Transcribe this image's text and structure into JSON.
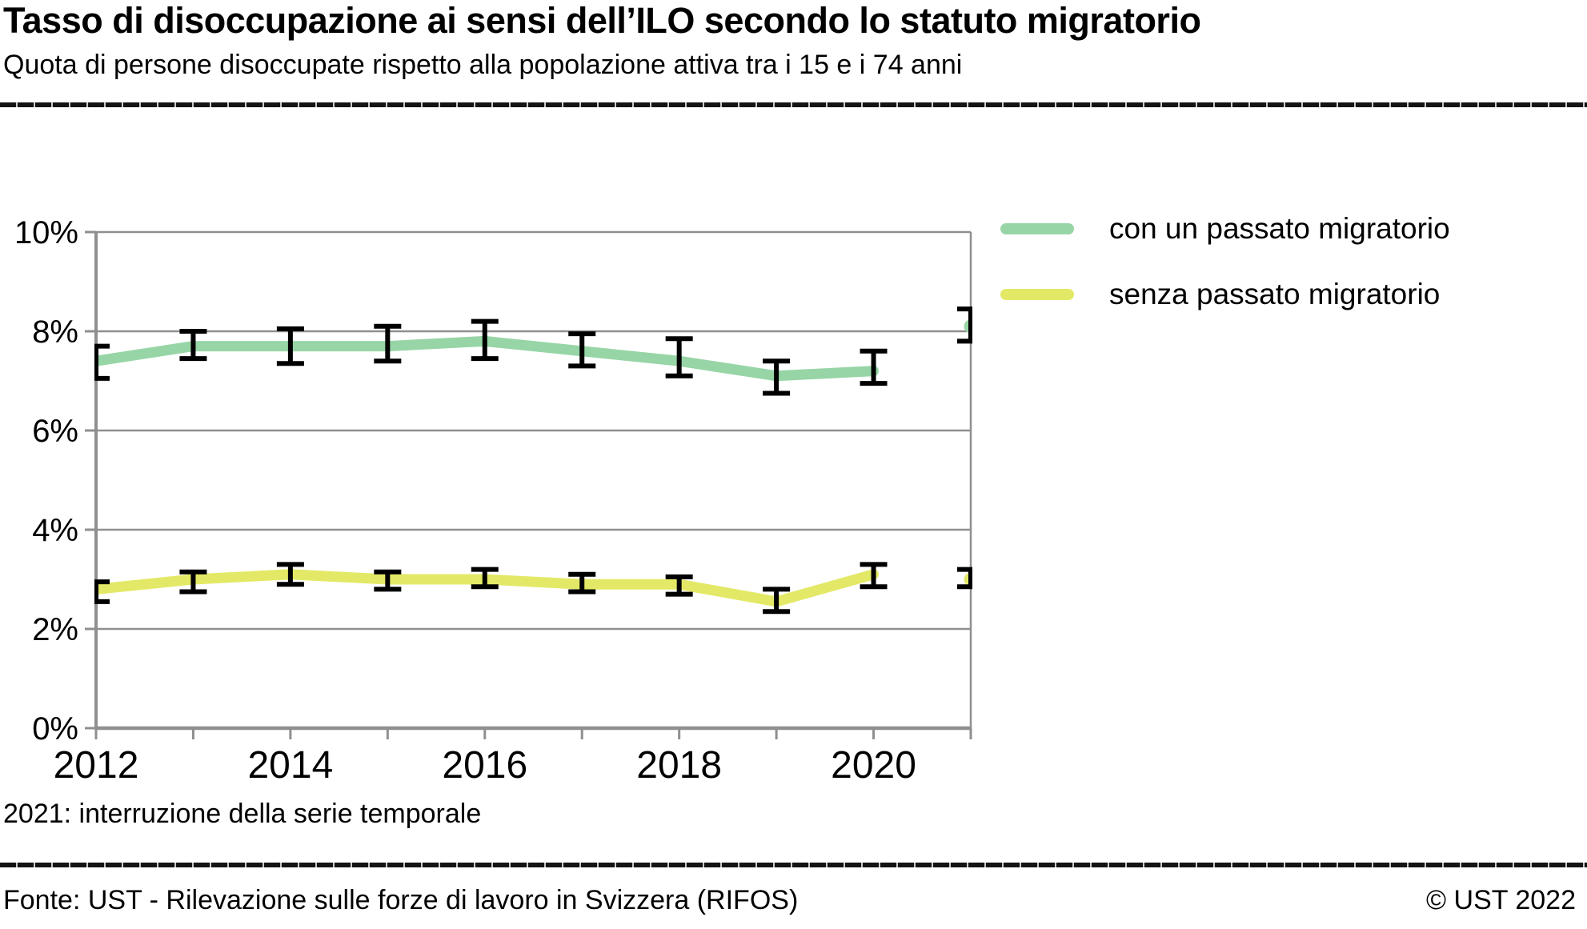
{
  "header": {
    "title": "Tasso di disoccupazione ai sensi dell’ILO secondo lo statuto migratorio",
    "subtitle": "Quota di persone disoccupate rispetto alla popolazione attiva tra i 15 e i 74 anni"
  },
  "footnote": "2021: interruzione della serie temporale",
  "footer": {
    "source": "Fonte: UST - Rilevazione sulle forze di lavoro in Svizzera (RIFOS)",
    "copyright": "© UST 2022"
  },
  "colors": {
    "grid": "#8f8f8f",
    "axis": "#8f8f8f",
    "error_bar": "#000000",
    "rule": "#141414",
    "series_green": "#97d5a6",
    "series_yellow": "#e3e966"
  },
  "chart_data": {
    "type": "line",
    "title": "Tasso di disoccupazione ai sensi dell’ILO secondo lo statuto migratorio",
    "xlabel": "",
    "ylabel": "",
    "unit": "%",
    "ylim": [
      0,
      10
    ],
    "y_tick_labels": [
      "0%",
      "2%",
      "4%",
      "6%",
      "8%",
      "10%"
    ],
    "x": [
      2012,
      2013,
      2014,
      2015,
      2016,
      2017,
      2018,
      2019,
      2020,
      2021
    ],
    "x_tick_labels": [
      "2012",
      "2014",
      "2016",
      "2018",
      "2020"
    ],
    "grid": "horizontal",
    "legend_position": "right",
    "series": [
      {
        "name": "con un passato migratorio",
        "color": "#97d5a6",
        "values": [
          7.4,
          7.7,
          7.7,
          7.7,
          7.8,
          7.6,
          7.4,
          7.1,
          7.2,
          8.1
        ],
        "err_low": [
          7.05,
          7.45,
          7.35,
          7.4,
          7.45,
          7.3,
          7.1,
          6.75,
          6.95,
          7.8
        ],
        "err_high": [
          7.7,
          8.0,
          8.05,
          8.1,
          8.2,
          7.95,
          7.85,
          7.4,
          7.6,
          8.45
        ],
        "break_after_x": 2020
      },
      {
        "name": "senza passato migratorio",
        "color": "#e3e966",
        "values": [
          2.8,
          3.0,
          3.1,
          3.0,
          3.0,
          2.9,
          2.9,
          2.55,
          3.1,
          3.0
        ],
        "err_low": [
          2.55,
          2.75,
          2.9,
          2.8,
          2.85,
          2.75,
          2.7,
          2.35,
          2.85,
          2.85
        ],
        "err_high": [
          2.95,
          3.15,
          3.3,
          3.15,
          3.2,
          3.1,
          3.05,
          2.8,
          3.3,
          3.2
        ],
        "break_after_x": 2020
      }
    ]
  }
}
